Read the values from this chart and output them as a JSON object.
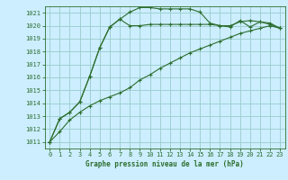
{
  "title": "Graphe pression niveau de la mer (hPa)",
  "background_color": "#cceeff",
  "grid_color": "#99cccc",
  "line_color": "#2d6e2d",
  "xlim": [
    -0.5,
    23.5
  ],
  "ylim": [
    1010.5,
    1021.5
  ],
  "xticks": [
    0,
    1,
    2,
    3,
    4,
    5,
    6,
    7,
    8,
    9,
    10,
    11,
    12,
    13,
    14,
    15,
    16,
    17,
    18,
    19,
    20,
    21,
    22,
    23
  ],
  "yticks": [
    1011,
    1012,
    1013,
    1014,
    1015,
    1016,
    1017,
    1018,
    1019,
    1020,
    1021
  ],
  "series1": [
    1011.0,
    1011.8,
    1012.7,
    1013.3,
    1013.8,
    1014.2,
    1014.5,
    1014.8,
    1015.2,
    1015.8,
    1016.2,
    1016.7,
    1017.1,
    1017.5,
    1017.9,
    1018.2,
    1018.5,
    1018.8,
    1019.1,
    1019.4,
    1019.6,
    1019.8,
    1020.0,
    1019.8
  ],
  "series2": [
    1011.0,
    1012.8,
    1013.3,
    1014.1,
    1016.1,
    1018.3,
    1019.9,
    1020.5,
    1020.0,
    1020.0,
    1020.1,
    1020.1,
    1020.1,
    1020.1,
    1020.1,
    1020.1,
    1020.1,
    1020.0,
    1020.0,
    1020.3,
    1020.4,
    1020.3,
    1020.1,
    1019.8
  ],
  "series3": [
    1011.0,
    1012.8,
    1013.3,
    1014.1,
    1016.1,
    1018.3,
    1019.9,
    1020.5,
    1021.05,
    1021.4,
    1021.4,
    1021.3,
    1021.3,
    1021.3,
    1021.3,
    1021.05,
    1020.2,
    1020.0,
    1019.9,
    1020.4,
    1019.9,
    1020.3,
    1020.2,
    1019.8
  ]
}
